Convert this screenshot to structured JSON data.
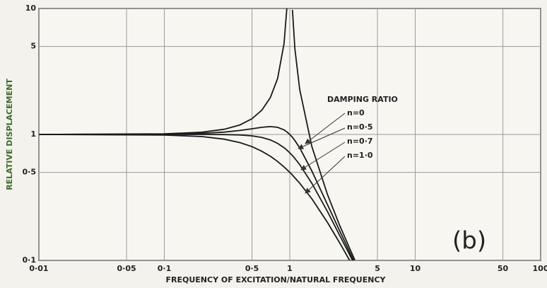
{
  "chart_data": {
    "type": "line",
    "xlabel": "FREQUENCY OF EXCITATION/NATURAL FREQUENCY",
    "ylabel": "RELATIVE DISPLACEMENT",
    "annotation": "(b)",
    "legend_title": "DAMPING RATIO",
    "xscale": "log",
    "yscale": "log",
    "grid": true,
    "xlim": [
      0.01,
      100
    ],
    "ylim": [
      0.1,
      10
    ],
    "xticks": [
      {
        "value": 0.01,
        "label": "0·01"
      },
      {
        "value": 0.05,
        "label": "0·05"
      },
      {
        "value": 0.1,
        "label": "0·1"
      },
      {
        "value": 0.5,
        "label": "0·5"
      },
      1,
      5,
      10,
      50,
      100
    ],
    "yticks": [
      {
        "value": 0.1,
        "label": "0·1"
      },
      {
        "value": 0.5,
        "label": "0·5"
      },
      1,
      5,
      10
    ],
    "x": [
      0.01,
      0.1,
      0.2,
      0.3,
      0.4,
      0.5,
      0.6,
      0.7,
      0.8,
      0.9,
      0.95,
      1,
      1.05,
      1.1,
      1.2,
      1.5,
      2,
      2.5,
      3,
      3.3
    ],
    "series": [
      {
        "name": "n=0",
        "color": "#1a1a1a",
        "values": [
          1.0,
          1.01,
          1.042,
          1.099,
          1.19,
          1.333,
          1.563,
          1.96,
          2.78,
          5.26,
          10.26,
          null,
          9.76,
          4.76,
          2.27,
          0.8,
          0.333,
          0.19,
          0.125,
          0.101
        ]
      },
      {
        "name": "n=0·5",
        "color": "#1a1a1a",
        "values": [
          1.0,
          1.005,
          1.02,
          1.044,
          1.075,
          1.109,
          1.14,
          1.155,
          1.14,
          1.087,
          1.047,
          1.0,
          0.948,
          0.893,
          0.782,
          0.512,
          0.277,
          0.172,
          0.117,
          0.096
        ]
      },
      {
        "name": "n=0·7",
        "color": "#1a1a1a",
        "values": [
          1.0,
          1.0,
          1.0,
          0.998,
          0.991,
          0.975,
          0.947,
          0.905,
          0.85,
          0.785,
          0.75,
          0.714,
          0.679,
          0.643,
          0.576,
          0.409,
          0.244,
          0.158,
          0.111,
          0.092
        ]
      },
      {
        "name": "n=1·0",
        "color": "#1a1a1a",
        "values": [
          1.0,
          0.99,
          0.962,
          0.917,
          0.862,
          0.8,
          0.735,
          0.671,
          0.61,
          0.552,
          0.526,
          0.5,
          0.476,
          0.452,
          0.41,
          0.308,
          0.2,
          0.138,
          0.1,
          0.084
        ]
      }
    ]
  }
}
